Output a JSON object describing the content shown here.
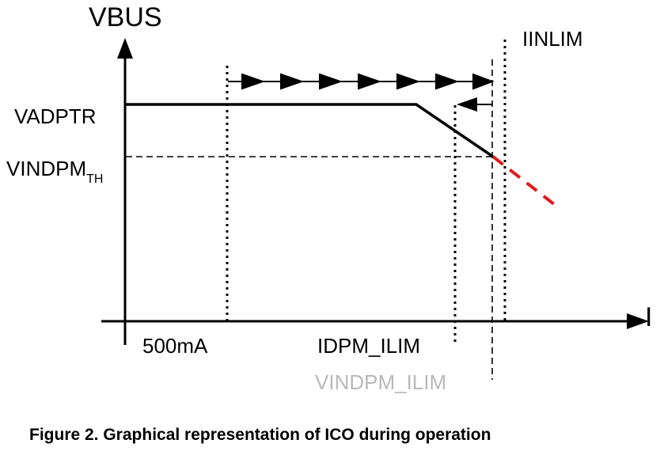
{
  "diagram": {
    "y_axis_label": "VBUS",
    "x_axis_label": "I",
    "labels": {
      "vadptr": "VADPTR",
      "vindpm_main": "VINDPM",
      "vindpm_sub": "TH",
      "iinlim": "IINLIM",
      "i500": "500mA",
      "idpm_ilim": "IDPM_ILIM",
      "vindpm_ilim": "VINDPM_ILIM"
    },
    "colors": {
      "line": "#000000",
      "extrapolation": "#e0191c",
      "faded_label": "#b9b9b9"
    }
  },
  "caption": "Figure 2. Graphical representation of ICO during operation"
}
